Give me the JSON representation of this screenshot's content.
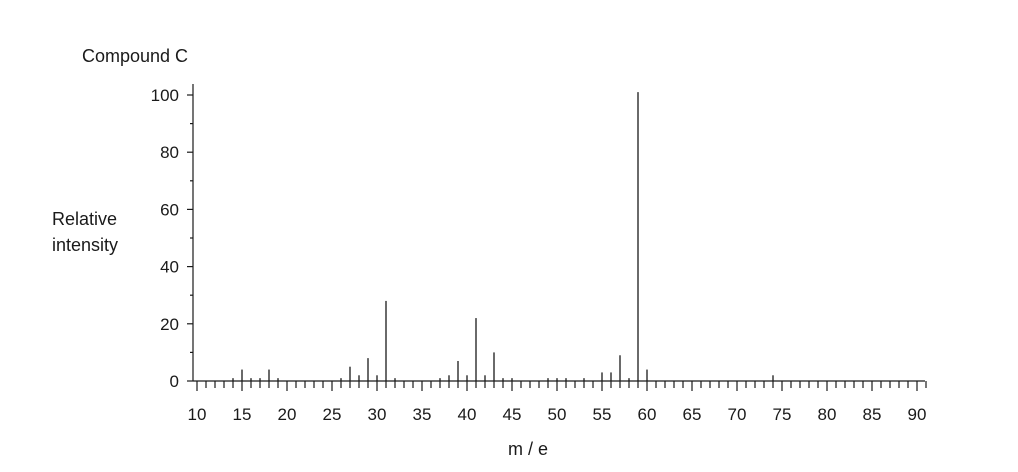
{
  "chart_data": {
    "type": "bar",
    "title": "Compound C",
    "ylabel_lines": [
      "Relative",
      "intensity"
    ],
    "xlabel": "m / e",
    "xlim": [
      10,
      91
    ],
    "ylim": [
      0,
      100
    ],
    "x_ticks": [
      10,
      15,
      20,
      25,
      30,
      35,
      40,
      45,
      50,
      55,
      60,
      65,
      70,
      75,
      80,
      85,
      90
    ],
    "y_ticks": [
      0,
      20,
      40,
      60,
      80,
      100
    ],
    "x": [
      14,
      15,
      16,
      17,
      18,
      19,
      26,
      27,
      28,
      29,
      30,
      31,
      32,
      37,
      38,
      39,
      40,
      41,
      42,
      43,
      44,
      45,
      49,
      50,
      51,
      53,
      55,
      56,
      57,
      58,
      59,
      60,
      74
    ],
    "values": [
      1,
      4,
      1,
      1,
      4,
      1,
      1,
      5,
      2,
      8,
      2,
      28,
      1,
      1,
      2,
      7,
      2,
      22,
      2,
      10,
      1,
      1,
      1,
      1,
      1,
      1,
      3,
      3,
      9,
      1,
      101,
      4,
      2
    ],
    "grid": false,
    "legend": false,
    "colors": {
      "ink": "#1a1a1a",
      "background": "#ffffff"
    }
  }
}
